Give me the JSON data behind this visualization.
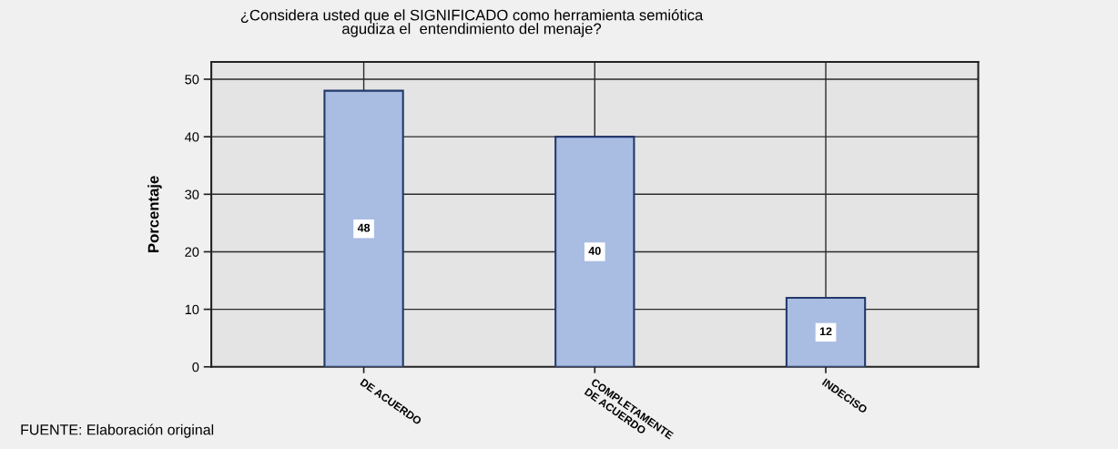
{
  "chart_data": {
    "type": "bar",
    "title": "¿Considera usted que el SIGNIFICADO como herramienta semiótica\nagudiza el  entendimiento del menaje?",
    "ylabel": "Porcentaje",
    "categories": [
      "DE ACUERDO",
      "COMPLETAMENTE\nDE ACUERDO",
      "INDECISO"
    ],
    "values": [
      48,
      40,
      12
    ],
    "color": "#a9bde3",
    "ylim": [
      0,
      53
    ],
    "yticks": [
      0,
      10,
      20,
      30,
      40,
      50
    ],
    "grid": true,
    "data_labels": true,
    "annotations": [
      "FUENTE: Elaboración original"
    ]
  }
}
